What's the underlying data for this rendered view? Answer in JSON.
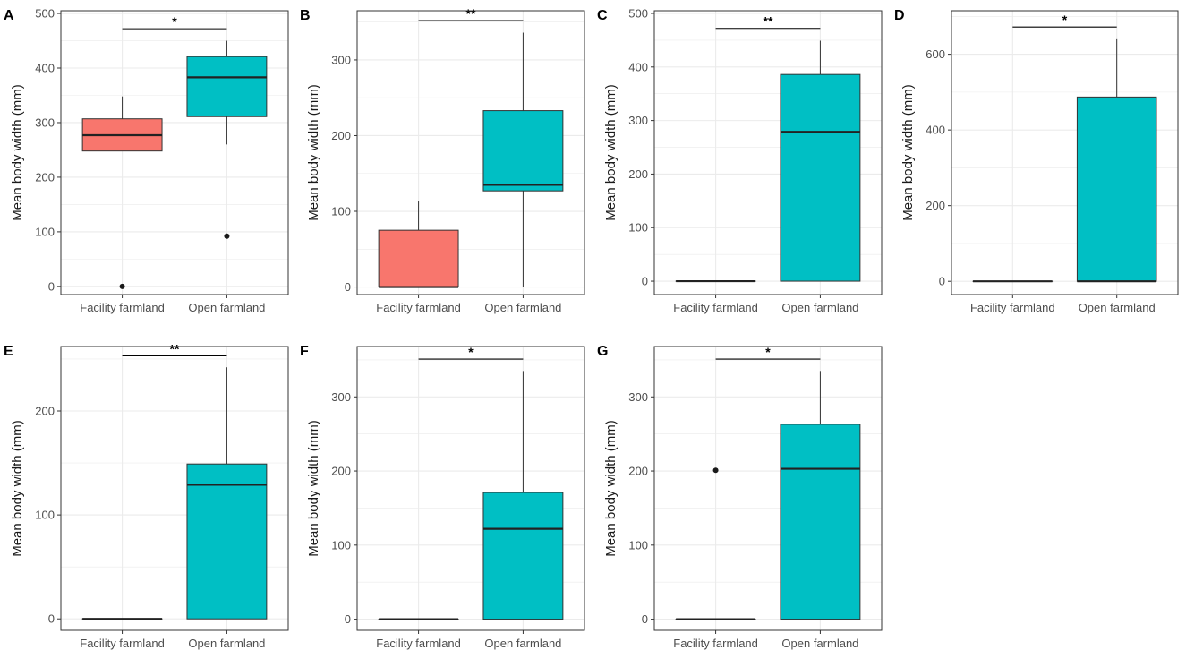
{
  "colors": {
    "facility": "#F8766D",
    "open": "#00BFC4",
    "grid": "#ebebeb",
    "outline": "#333333",
    "panel_border": "#333333"
  },
  "chart_data": [
    {
      "panel": "A",
      "type": "box",
      "ylabel": "Mean body width (mm)",
      "categories": [
        "Facility farmland",
        "Open farmland"
      ],
      "ylim": [
        -15,
        505
      ],
      "yticks": [
        0,
        100,
        200,
        300,
        400,
        500
      ],
      "boxes": [
        {
          "min": 248,
          "q1": 248,
          "median": 277,
          "q3": 307,
          "max": 348,
          "outliers": [
            0
          ]
        },
        {
          "min": 260,
          "q1": 311,
          "median": 383,
          "q3": 421,
          "max": 450,
          "outliers": [
            92
          ]
        }
      ],
      "significance": "*",
      "sig_y": 472
    },
    {
      "panel": "B",
      "type": "box",
      "ylabel": "Mean body width (mm)",
      "categories": [
        "Facility farmland",
        "Open farmland"
      ],
      "ylim": [
        -10,
        365
      ],
      "yticks": [
        0,
        100,
        200,
        300
      ],
      "boxes": [
        {
          "min": 0,
          "q1": 0,
          "median": 0,
          "q3": 75,
          "max": 113,
          "outliers": []
        },
        {
          "min": 0,
          "q1": 127,
          "median": 135,
          "q3": 233,
          "max": 336,
          "outliers": []
        }
      ],
      "significance": "**",
      "sig_y": 352
    },
    {
      "panel": "C",
      "type": "box",
      "ylabel": "Mean body width (mm)",
      "categories": [
        "Facility farmland",
        "Open farmland"
      ],
      "ylim": [
        -25,
        505
      ],
      "yticks": [
        0,
        100,
        200,
        300,
        400,
        500
      ],
      "boxes": [
        {
          "min": 0,
          "q1": 0,
          "median": 0,
          "q3": 0,
          "max": 0,
          "outliers": []
        },
        {
          "min": 0,
          "q1": 0,
          "median": 279,
          "q3": 386,
          "max": 449,
          "outliers": []
        }
      ],
      "significance": "**",
      "sig_y": 472
    },
    {
      "panel": "D",
      "type": "box",
      "ylabel": "Mean body width (mm)",
      "categories": [
        "Facility farmland",
        "Open farmland"
      ],
      "ylim": [
        -35,
        715
      ],
      "yticks": [
        0,
        200,
        400,
        600
      ],
      "boxes": [
        {
          "min": 0,
          "q1": 0,
          "median": 0,
          "q3": 0,
          "max": 0,
          "outliers": []
        },
        {
          "min": 0,
          "q1": 0,
          "median": 0,
          "q3": 487,
          "max": 642,
          "outliers": []
        }
      ],
      "significance": "*",
      "sig_y": 672
    },
    {
      "panel": "E",
      "type": "box",
      "ylabel": "Mean body width (mm)",
      "categories": [
        "Facility farmland",
        "Open farmland"
      ],
      "ylim": [
        -11,
        262
      ],
      "yticks": [
        0,
        100,
        200
      ],
      "boxes": [
        {
          "min": 0,
          "q1": 0,
          "median": 0,
          "q3": 0,
          "max": 0,
          "outliers": []
        },
        {
          "min": 0,
          "q1": 0,
          "median": 129,
          "q3": 149,
          "max": 242,
          "outliers": []
        }
      ],
      "significance": "**",
      "sig_y": 253
    },
    {
      "panel": "F",
      "type": "box",
      "ylabel": "Mean body width (mm)",
      "categories": [
        "Facility farmland",
        "Open farmland"
      ],
      "ylim": [
        -15,
        368
      ],
      "yticks": [
        0,
        100,
        200,
        300
      ],
      "boxes": [
        {
          "min": 0,
          "q1": 0,
          "median": 0,
          "q3": 0,
          "max": 0,
          "outliers": []
        },
        {
          "min": 0,
          "q1": 0,
          "median": 122,
          "q3": 171,
          "max": 335,
          "outliers": []
        }
      ],
      "significance": "*",
      "sig_y": 351
    },
    {
      "panel": "G",
      "type": "box",
      "ylabel": "Mean body width (mm)",
      "categories": [
        "Facility farmland",
        "Open farmland"
      ],
      "ylim": [
        -15,
        368
      ],
      "yticks": [
        0,
        100,
        200,
        300
      ],
      "boxes": [
        {
          "min": 0,
          "q1": 0,
          "median": 0,
          "q3": 0,
          "max": 0,
          "outliers": [
            201
          ]
        },
        {
          "min": 0,
          "q1": 0,
          "median": 203,
          "q3": 263,
          "max": 335,
          "outliers": []
        }
      ],
      "significance": "*",
      "sig_y": 351
    }
  ]
}
